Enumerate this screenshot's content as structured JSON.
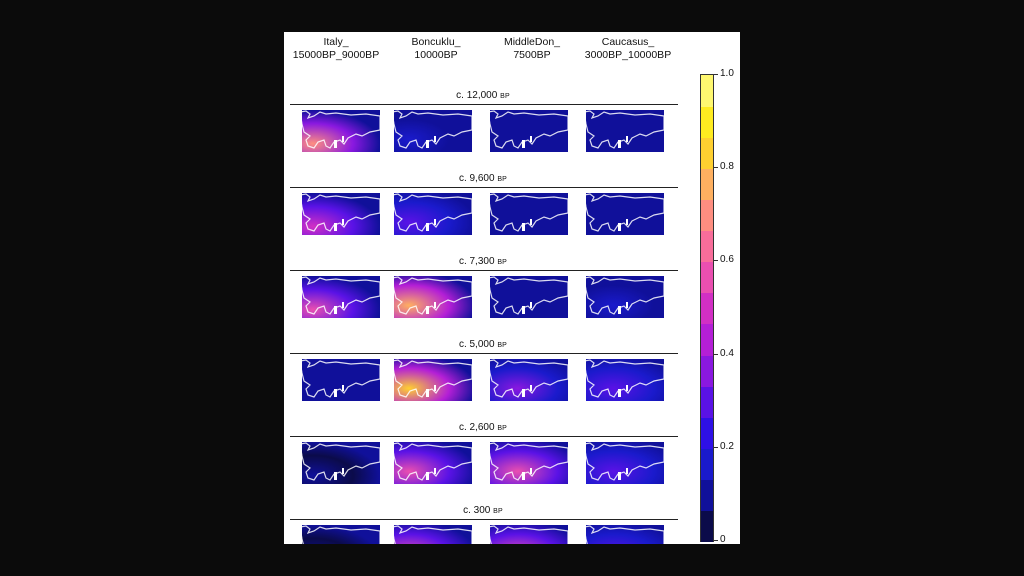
{
  "columns": [
    {
      "line1": "Italy_",
      "line2": "15000BP_9000BP"
    },
    {
      "line1": "Boncuklu_",
      "line2": "10000BP"
    },
    {
      "line1": "MiddleDon_",
      "line2": "7500BP"
    },
    {
      "line1": "Caucasus_",
      "line2": "3000BP_10000BP"
    }
  ],
  "rows": [
    {
      "label": "c. 12,000",
      "unit": "BP",
      "levels": [
        0.7,
        0.12,
        0.1,
        0.1
      ]
    },
    {
      "label": "c. 9,600",
      "unit": "BP",
      "levels": [
        0.5,
        0.3,
        0.1,
        0.1
      ]
    },
    {
      "label": "c. 7,300",
      "unit": "BP",
      "levels": [
        0.6,
        0.8,
        0.1,
        0.15
      ]
    },
    {
      "label": "c. 5,000",
      "unit": "BP",
      "levels": [
        0.08,
        0.85,
        0.35,
        0.25
      ]
    },
    {
      "label": "c. 2,600",
      "unit": "BP",
      "levels": [
        0.05,
        0.6,
        0.6,
        0.25
      ]
    },
    {
      "label": "c. 300",
      "unit": "BP",
      "levels": [
        0.05,
        0.55,
        0.55,
        0.25
      ]
    }
  ],
  "colorbar": {
    "ticks": [
      "1.0",
      "0.8",
      "0.6",
      "0.4",
      "0.2",
      "0"
    ],
    "tick_values": [
      1.0,
      0.8,
      0.6,
      0.4,
      0.2,
      0.0
    ],
    "colors": [
      "#0b0b4a",
      "#10109a",
      "#1a1acc",
      "#2e10e6",
      "#5a12e6",
      "#8a18e0",
      "#b41fd6",
      "#d22fc4",
      "#ea4fb0",
      "#f86d9a",
      "#fe8e80",
      "#ffb060",
      "#ffd030",
      "#ffec20",
      "#fff870"
    ]
  }
}
